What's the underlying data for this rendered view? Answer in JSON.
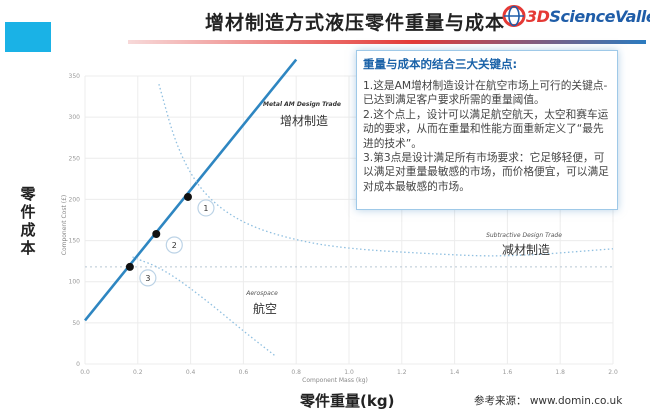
{
  "header": {
    "title": "增材制造方式液压零件重量与成本",
    "logo_prefix": "3D",
    "logo_text": "ScienceValley",
    "accent_color": "#1ab2e6"
  },
  "callout": {
    "heading": "重量与成本的结合三大关键点:",
    "body": "1.这是AM增材制造设计在航空市场上可行的关键点-已达到满足客户要求所需的重量阈值。\n2.这个点上，设计可以满足航空航天，太空和赛车运动的要求，从而在重量和性能方面重新定义了“最先进的技术”。\n3.第3点是设计满足所有市场要求：它足够轻便，可以满足对重量最敏感的市场，而价格便宜，可以满足对成本最敏感的市场。"
  },
  "axes": {
    "y_label_cn": "零件成本",
    "x_label_cn": "零件重量(kg)",
    "y_label_en": "Component Cost (£)",
    "x_label_en": "Component Mass (kg)"
  },
  "source": "参考来源：  www.domin.co.uk",
  "chart_data": {
    "type": "line",
    "xlim": [
      0,
      2.0
    ],
    "ylim": [
      0,
      350
    ],
    "x_ticks": [
      "0.0",
      "0.2",
      "0.4",
      "0.6",
      "0.8",
      "1.0",
      "1.2",
      "1.4",
      "1.6",
      "1.8",
      "2.0"
    ],
    "y_ticks": [
      "0",
      "50",
      "100",
      "150",
      "200",
      "250",
      "300",
      "350"
    ],
    "grid": true,
    "series": [
      {
        "name": "Metal AM Design Trade",
        "name_cn": "增材制造",
        "style": "solid",
        "color": "#2e86c1",
        "x": [
          0.0,
          0.8
        ],
        "y": [
          53,
          370
        ]
      },
      {
        "name": "Subtractive Design Trade",
        "name_cn": "减材制造",
        "style": "dotted",
        "color": "#8fbfe0",
        "x": [
          0.28,
          0.35,
          0.45,
          0.6,
          0.8,
          1.0,
          1.3,
          1.6,
          2.0
        ],
        "y": [
          340,
          260,
          205,
          170,
          150,
          140,
          134,
          130,
          140
        ]
      },
      {
        "name": "Aerospace",
        "name_cn": "航空",
        "style": "dotted",
        "color": "#8fbfe0",
        "x": [
          0.18,
          0.3,
          0.45,
          0.6,
          0.72
        ],
        "y": [
          130,
          115,
          80,
          40,
          10
        ]
      }
    ],
    "reference_line": {
      "y": 118
    },
    "key_points": [
      {
        "label": "1",
        "x": 0.39,
        "y": 203
      },
      {
        "label": "2",
        "x": 0.27,
        "y": 158
      },
      {
        "label": "3",
        "x": 0.17,
        "y": 118
      }
    ]
  }
}
